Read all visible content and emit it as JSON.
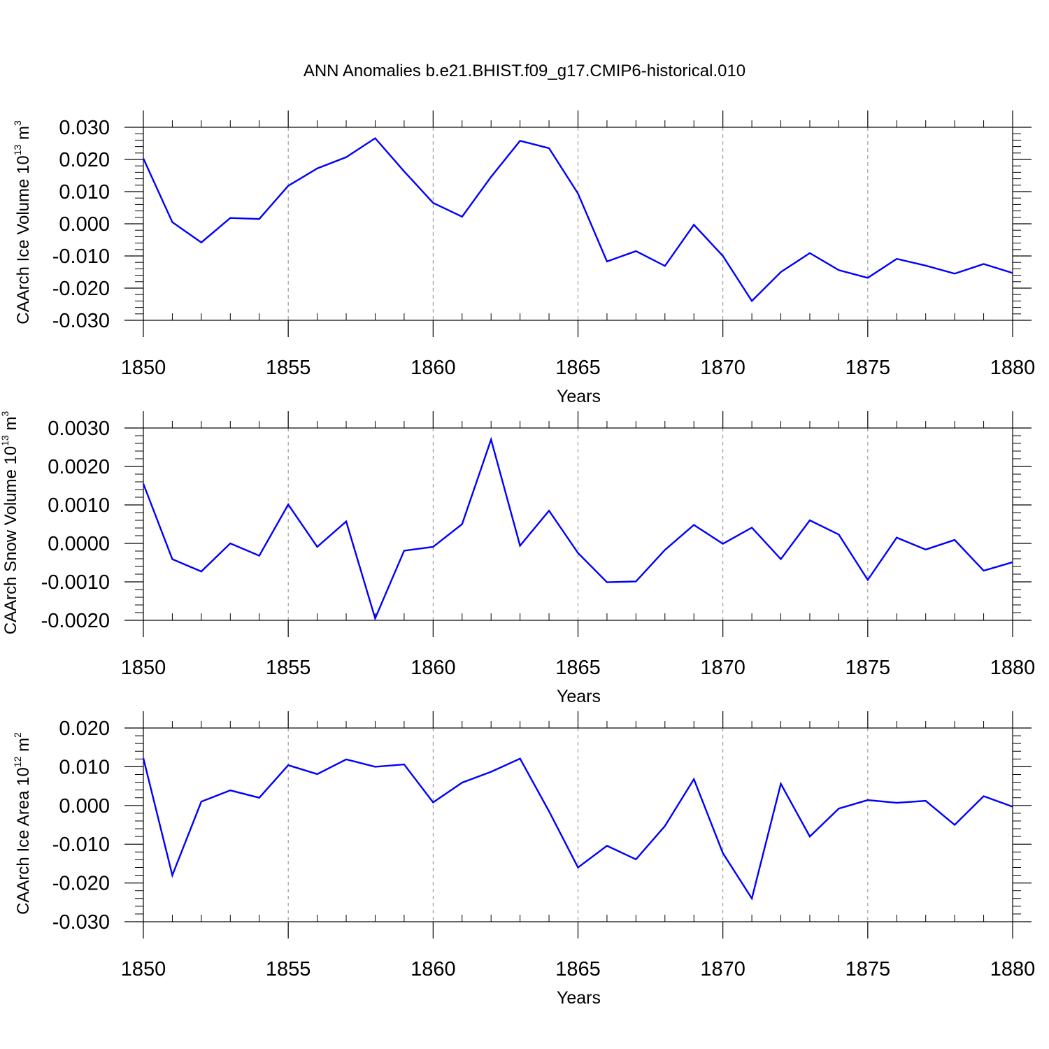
{
  "title": "ANN Anomalies b.e21.BHIST.f09_g17.CMIP6-historical.010",
  "colors": {
    "line": "#0000ff",
    "axis": "#000000",
    "grid": "#888888"
  },
  "chart_data": [
    {
      "type": "line",
      "title": "ANN Anomalies b.e21.BHIST.f09_g17.CMIP6-historical.010",
      "xlabel": "Years",
      "ylabel": {
        "base": "CAArch Ice Volume 10",
        "exp1": "13",
        "mid": " m",
        "exp2": "3"
      },
      "xlim": [
        1850,
        1880
      ],
      "ylim": [
        -0.03,
        0.03
      ],
      "xticks": [
        "1850",
        "1855",
        "1860",
        "1865",
        "1870",
        "1875",
        "1880"
      ],
      "yticks": [
        "0.030",
        "0.020",
        "0.010",
        "0.000",
        "-0.010",
        "-0.020",
        "-0.030"
      ],
      "grid": "vertical dashed at major x ticks",
      "x": [
        1850,
        1851,
        1852,
        1853,
        1854,
        1855,
        1856,
        1857,
        1858,
        1859,
        1860,
        1861,
        1862,
        1863,
        1864,
        1865,
        1866,
        1867,
        1868,
        1869,
        1870,
        1871,
        1872,
        1873,
        1874,
        1875,
        1876,
        1877,
        1878,
        1879,
        1880
      ],
      "series": [
        {
          "values": [
            0.0203,
            0.0005,
            -0.0058,
            0.0018,
            0.0015,
            0.0118,
            0.0172,
            0.0207,
            0.0266,
            0.0163,
            0.0065,
            0.0022,
            0.0146,
            0.0258,
            0.0235,
            0.0094,
            -0.0117,
            -0.0085,
            -0.0131,
            -0.0003,
            -0.01,
            -0.024,
            -0.015,
            -0.0091,
            -0.0144,
            -0.0168,
            -0.0109,
            -0.013,
            -0.0155,
            -0.0125,
            -0.0153
          ]
        }
      ]
    },
    {
      "type": "line",
      "xlabel": "Years",
      "ylabel": {
        "base": "CAArch Snow Volume 10",
        "exp1": "13",
        "mid": " m",
        "exp2": "3"
      },
      "xlim": [
        1850,
        1880
      ],
      "ylim": [
        -0.002,
        0.003
      ],
      "xticks": [
        "1850",
        "1855",
        "1860",
        "1865",
        "1870",
        "1875",
        "1880"
      ],
      "yticks": [
        "0.0030",
        "0.0020",
        "0.0010",
        "0.0000",
        "-0.0010",
        "-0.0020"
      ],
      "grid": "vertical dashed at major x ticks",
      "x": [
        1850,
        1851,
        1852,
        1853,
        1854,
        1855,
        1856,
        1857,
        1858,
        1859,
        1860,
        1861,
        1862,
        1863,
        1864,
        1865,
        1866,
        1867,
        1868,
        1869,
        1870,
        1871,
        1872,
        1873,
        1874,
        1875,
        1876,
        1877,
        1878,
        1879,
        1880
      ],
      "series": [
        {
          "values": [
            0.00155,
            -0.00041,
            -0.00073,
            0.0,
            -0.00032,
            0.00101,
            -9e-05,
            0.00057,
            -0.00195,
            -0.00019,
            -9e-05,
            0.0005,
            0.0027,
            -6e-05,
            0.00085,
            -0.00025,
            -0.00101,
            -0.00099,
            -0.00017,
            0.00048,
            -1e-05,
            0.00041,
            -0.00041,
            0.0006,
            0.00023,
            -0.00095,
            0.00015,
            -0.00016,
            9e-05,
            -0.00071,
            -0.00049
          ]
        }
      ]
    },
    {
      "type": "line",
      "xlabel": "Years",
      "ylabel": {
        "base": "CAArch Ice Area 10",
        "exp1": "12",
        "mid": " m",
        "exp2": "2"
      },
      "xlim": [
        1850,
        1880
      ],
      "ylim": [
        -0.03,
        0.02
      ],
      "xticks": [
        "1850",
        "1855",
        "1860",
        "1865",
        "1870",
        "1875",
        "1880"
      ],
      "yticks": [
        "0.020",
        "0.010",
        "0.000",
        "-0.010",
        "-0.020",
        "-0.030"
      ],
      "grid": "vertical dashed at major x ticks",
      "x": [
        1850,
        1851,
        1852,
        1853,
        1854,
        1855,
        1856,
        1857,
        1858,
        1859,
        1860,
        1861,
        1862,
        1863,
        1864,
        1865,
        1866,
        1867,
        1868,
        1869,
        1870,
        1871,
        1872,
        1873,
        1874,
        1875,
        1876,
        1877,
        1878,
        1879,
        1880
      ],
      "series": [
        {
          "values": [
            0.0122,
            -0.018,
            0.001,
            0.0039,
            0.002,
            0.0104,
            0.0081,
            0.0119,
            0.01,
            0.0106,
            0.0008,
            0.0059,
            0.0087,
            0.0121,
            -0.0015,
            -0.016,
            -0.0104,
            -0.0139,
            -0.0053,
            0.0068,
            -0.0123,
            -0.024,
            0.0056,
            -0.008,
            -0.0008,
            0.0014,
            0.0007,
            0.0012,
            -0.005,
            0.0024,
            -0.0003
          ]
        }
      ]
    }
  ]
}
